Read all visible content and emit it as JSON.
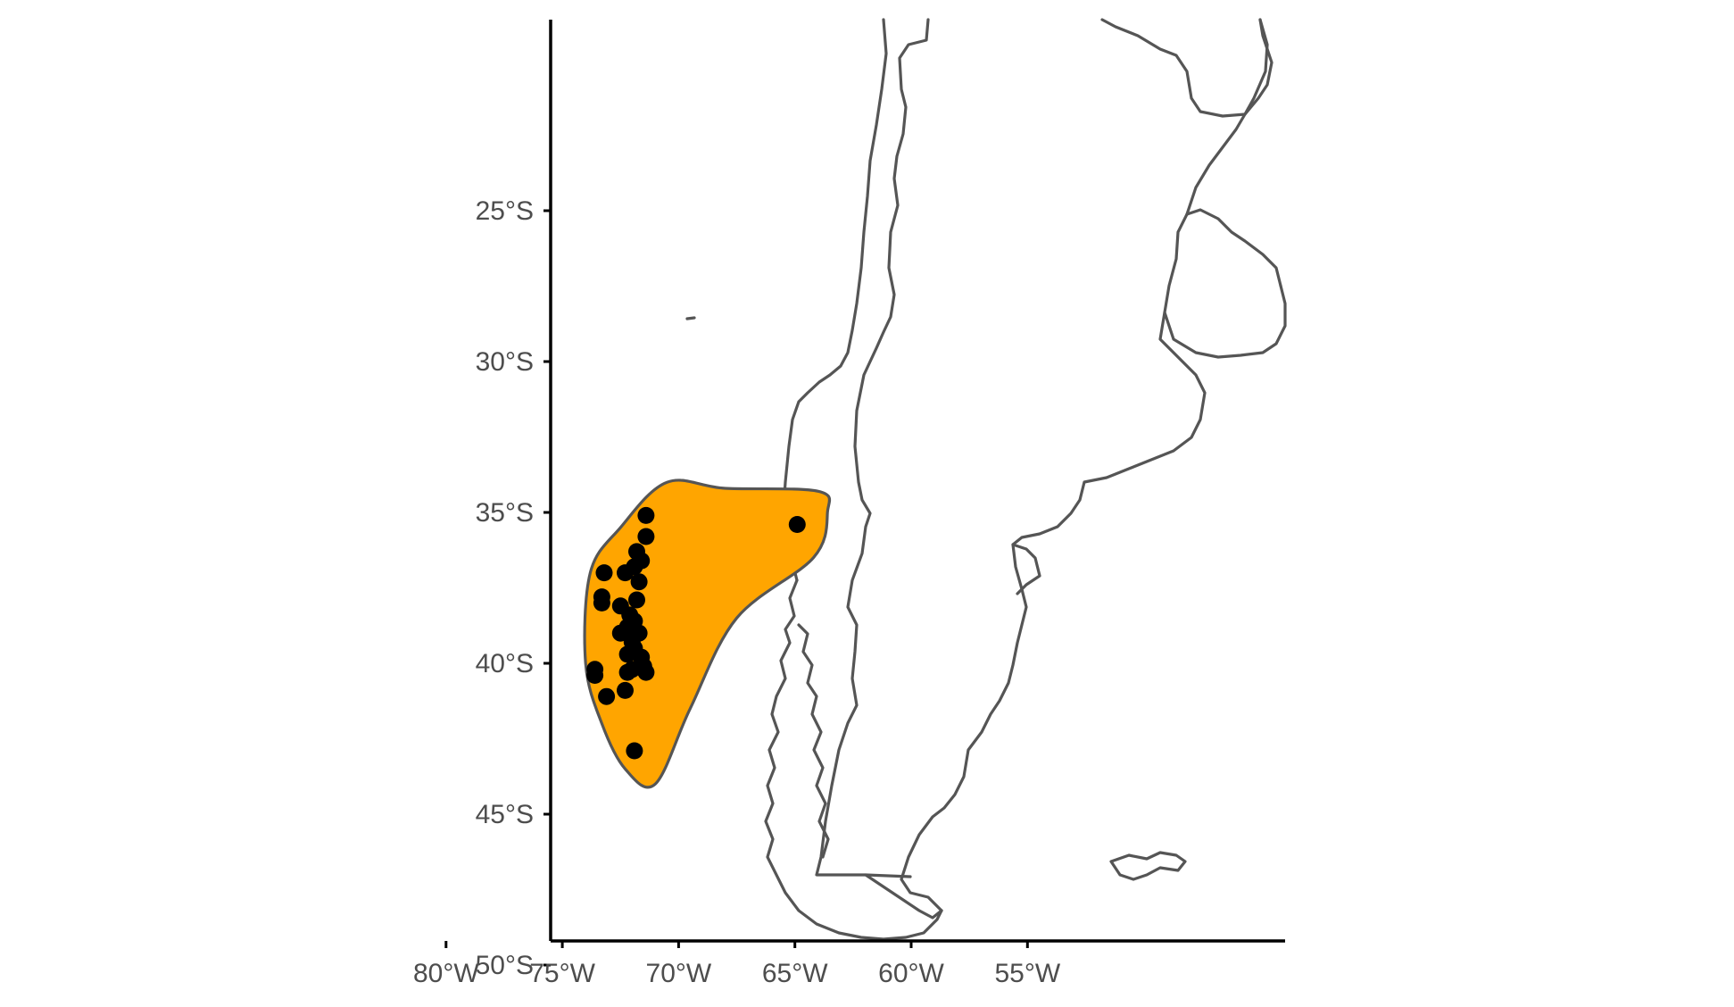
{
  "map": {
    "type": "range-map",
    "region": "southern South America",
    "y_ticks": [
      "25°S",
      "30°S",
      "35°S",
      "40°S",
      "45°S",
      "50°S"
    ],
    "x_ticks": [
      "80°W",
      "75°W",
      "70°W",
      "65°W",
      "60°W",
      "55°W"
    ],
    "range_fill_color": "#FFA500",
    "range_outline_color": "#555555",
    "point_color": "#000000",
    "coastline_color": "#555555"
  },
  "chart_data": {
    "type": "scatter",
    "title": "",
    "xlabel": "",
    "ylabel": "",
    "xlim": [
      -85,
      -54
    ],
    "ylim": [
      -54.2,
      -23.7
    ],
    "grid": false,
    "x_ticks": [
      -80,
      -75,
      -70,
      -65,
      -60,
      -55
    ],
    "y_ticks": [
      -25,
      -30,
      -35,
      -40,
      -45,
      -50
    ],
    "range_polygon": [
      [
        -70.5,
        -34.0
      ],
      [
        -68.0,
        -34.2
      ],
      [
        -64.0,
        -34.3
      ],
      [
        -63.6,
        -35.0
      ],
      [
        -64.2,
        -36.5
      ],
      [
        -67.5,
        -38.5
      ],
      [
        -69.5,
        -41.5
      ],
      [
        -71.0,
        -44.0
      ],
      [
        -72.3,
        -43.5
      ],
      [
        -73.3,
        -42.0
      ],
      [
        -74.0,
        -40.0
      ],
      [
        -73.8,
        -37.0
      ],
      [
        -72.5,
        -35.5
      ]
    ],
    "points": [
      [
        -71.4,
        -35.1
      ],
      [
        -71.4,
        -35.8
      ],
      [
        -64.9,
        -35.4
      ],
      [
        -71.8,
        -36.3
      ],
      [
        -71.6,
        -36.6
      ],
      [
        -71.9,
        -36.8
      ],
      [
        -72.3,
        -37.0
      ],
      [
        -71.7,
        -37.3
      ],
      [
        -73.2,
        -37.0
      ],
      [
        -73.3,
        -37.8
      ],
      [
        -73.3,
        -38.0
      ],
      [
        -72.5,
        -38.1
      ],
      [
        -71.8,
        -37.9
      ],
      [
        -72.1,
        -38.4
      ],
      [
        -71.9,
        -38.6
      ],
      [
        -72.2,
        -38.8
      ],
      [
        -71.7,
        -39.0
      ],
      [
        -72.5,
        -39.0
      ],
      [
        -72.0,
        -39.3
      ],
      [
        -71.9,
        -39.5
      ],
      [
        -72.2,
        -39.7
      ],
      [
        -71.6,
        -39.8
      ],
      [
        -71.5,
        -40.1
      ],
      [
        -72.0,
        -40.2
      ],
      [
        -71.4,
        -40.3
      ],
      [
        -72.2,
        -40.3
      ],
      [
        -73.6,
        -40.2
      ],
      [
        -73.6,
        -40.4
      ],
      [
        -72.3,
        -40.9
      ],
      [
        -73.1,
        -41.1
      ],
      [
        -71.9,
        -42.9
      ]
    ]
  }
}
